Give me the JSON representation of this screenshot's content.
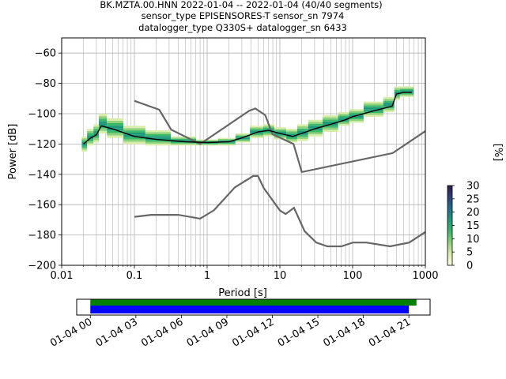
{
  "title_lines": [
    "BK.MZTA.00.HNN   2022-01-04 -- 2022-01-04  (40/40 segments)",
    "sensor_type EPISENSORES-T sensor_sn 7974",
    "datalogger_type Q330S+ datalogger_sn 6433"
  ],
  "chart_data": {
    "type": "line",
    "xlabel": "Period [s]",
    "ylabel": "Power [dB]",
    "xscale": "log",
    "xlim": [
      0.01,
      1000
    ],
    "ylim": [
      -200,
      -50
    ],
    "xticks": [
      {
        "value": 0.01,
        "label": "0.01"
      },
      {
        "value": 0.1,
        "label": "0.1"
      },
      {
        "value": 1,
        "label": "1"
      },
      {
        "value": 10,
        "label": "10"
      },
      {
        "value": 100,
        "label": "100"
      },
      {
        "value": 1000,
        "label": "1000"
      }
    ],
    "yticks": [
      {
        "value": -60,
        "label": "−60"
      },
      {
        "value": -80,
        "label": "−80"
      },
      {
        "value": -100,
        "label": "−100"
      },
      {
        "value": -120,
        "label": "−120"
      },
      {
        "value": -140,
        "label": "−140"
      },
      {
        "value": -160,
        "label": "−160"
      },
      {
        "value": -180,
        "label": "−180"
      },
      {
        "value": -200,
        "label": "−200"
      }
    ],
    "grid": true,
    "noise_models": [
      {
        "x": [
          0.1,
          0.22,
          0.32,
          0.8,
          3.8,
          4.6,
          6.3,
          7.9,
          15.4,
          20,
          354.8,
          1000
        ],
        "y": [
          -91.5,
          -97.4,
          -110.5,
          -120,
          -98,
          -96.5,
          -101,
          -113.5,
          -120,
          -138.5,
          -126,
          -111.5
        ]
      },
      {
        "x": [
          0.1,
          0.17,
          0.4,
          0.8,
          1.24,
          2.4,
          4.3,
          5,
          6,
          10,
          12,
          15.6,
          21.9,
          31.6,
          45,
          70,
          101,
          154,
          328,
          600,
          1000
        ],
        "y": [
          -168,
          -166.7,
          -166.7,
          -169.2,
          -163.7,
          -148.6,
          -141.1,
          -141.1,
          -149,
          -163.8,
          -166.2,
          -162.1,
          -177.5,
          -185,
          -187.5,
          -187.5,
          -185,
          -185,
          -187.5,
          -185,
          -178
        ]
      }
    ],
    "series": [
      {
        "x": [
          0.02,
          0.025,
          0.03,
          0.035,
          0.05,
          0.1,
          0.2,
          0.5,
          1,
          2,
          3,
          5,
          7,
          10,
          15,
          20,
          30,
          50,
          80,
          100,
          200,
          350,
          400,
          500,
          650
        ],
        "y": [
          -120,
          -116,
          -114,
          -108,
          -110,
          -115,
          -117,
          -118.5,
          -119,
          -118.5,
          -116,
          -112,
          -111,
          -113,
          -115,
          -113,
          -110,
          -107,
          -104,
          -102,
          -98,
          -95,
          -87,
          -86,
          -86
        ]
      }
    ],
    "psd_bins": [
      {
        "x": 0.02,
        "ymin": -125,
        "ymax": -115
      },
      {
        "x": 0.025,
        "ymin": -121,
        "ymax": -110
      },
      {
        "x": 0.03,
        "ymin": -119,
        "ymax": -107
      },
      {
        "x": 0.035,
        "ymin": -113,
        "ymax": -100
      },
      {
        "x": 0.05,
        "ymin": -116,
        "ymax": -103
      },
      {
        "x": 0.1,
        "ymin": -120,
        "ymax": -108
      },
      {
        "x": 0.2,
        "ymin": -121,
        "ymax": -111
      },
      {
        "x": 0.5,
        "ymin": -121,
        "ymax": -115
      },
      {
        "x": 1,
        "ymin": -121,
        "ymax": -117
      },
      {
        "x": 2,
        "ymin": -121,
        "ymax": -116
      },
      {
        "x": 3,
        "ymin": -119,
        "ymax": -113
      },
      {
        "x": 5,
        "ymin": -116,
        "ymax": -108
      },
      {
        "x": 7,
        "ymin": -115,
        "ymax": -107
      },
      {
        "x": 10,
        "ymin": -117,
        "ymax": -109
      },
      {
        "x": 15,
        "ymin": -119,
        "ymax": -110
      },
      {
        "x": 20,
        "ymin": -118,
        "ymax": -107
      },
      {
        "x": 30,
        "ymin": -115,
        "ymax": -104
      },
      {
        "x": 50,
        "ymin": -112,
        "ymax": -101
      },
      {
        "x": 80,
        "ymin": -108,
        "ymax": -99
      },
      {
        "x": 100,
        "ymin": -106,
        "ymax": -97
      },
      {
        "x": 200,
        "ymin": -102,
        "ymax": -92
      },
      {
        "x": 350,
        "ymin": -99,
        "ymax": -89
      },
      {
        "x": 400,
        "ymin": -91,
        "ymax": -82
      },
      {
        "x": 500,
        "ymin": -89,
        "ymax": -82
      },
      {
        "x": 650,
        "ymin": -89,
        "ymax": -82
      }
    ],
    "colorbar": {
      "label": "[%]",
      "ticks": [
        "0",
        "5",
        "10",
        "15",
        "20",
        "25",
        "30"
      ],
      "range": [
        0,
        30
      ],
      "colors": [
        "#ffffe0",
        "#d8edaa",
        "#8fd27c",
        "#3cb86a",
        "#1e9a7a",
        "#1f6f8b",
        "#2f3f7c",
        "#2d1a4f"
      ]
    },
    "timeline": {
      "tick_labels": [
        "01-04 00",
        "01-04 03",
        "01-04 06",
        "01-04 09",
        "01-04 12",
        "01-04 15",
        "01-04 18",
        "01-04 21"
      ],
      "xlim_hours": [
        -0.9,
        22.4
      ],
      "bars": [
        {
          "start_hours": 0,
          "end_hours": 21.5,
          "color": "#008000"
        },
        {
          "start_hours": 0,
          "end_hours": 21.0,
          "color": "#0000ff"
        }
      ]
    }
  },
  "colors": {
    "noise_model": "#666666",
    "median": "#000000",
    "grid": "#b0b0b0"
  }
}
